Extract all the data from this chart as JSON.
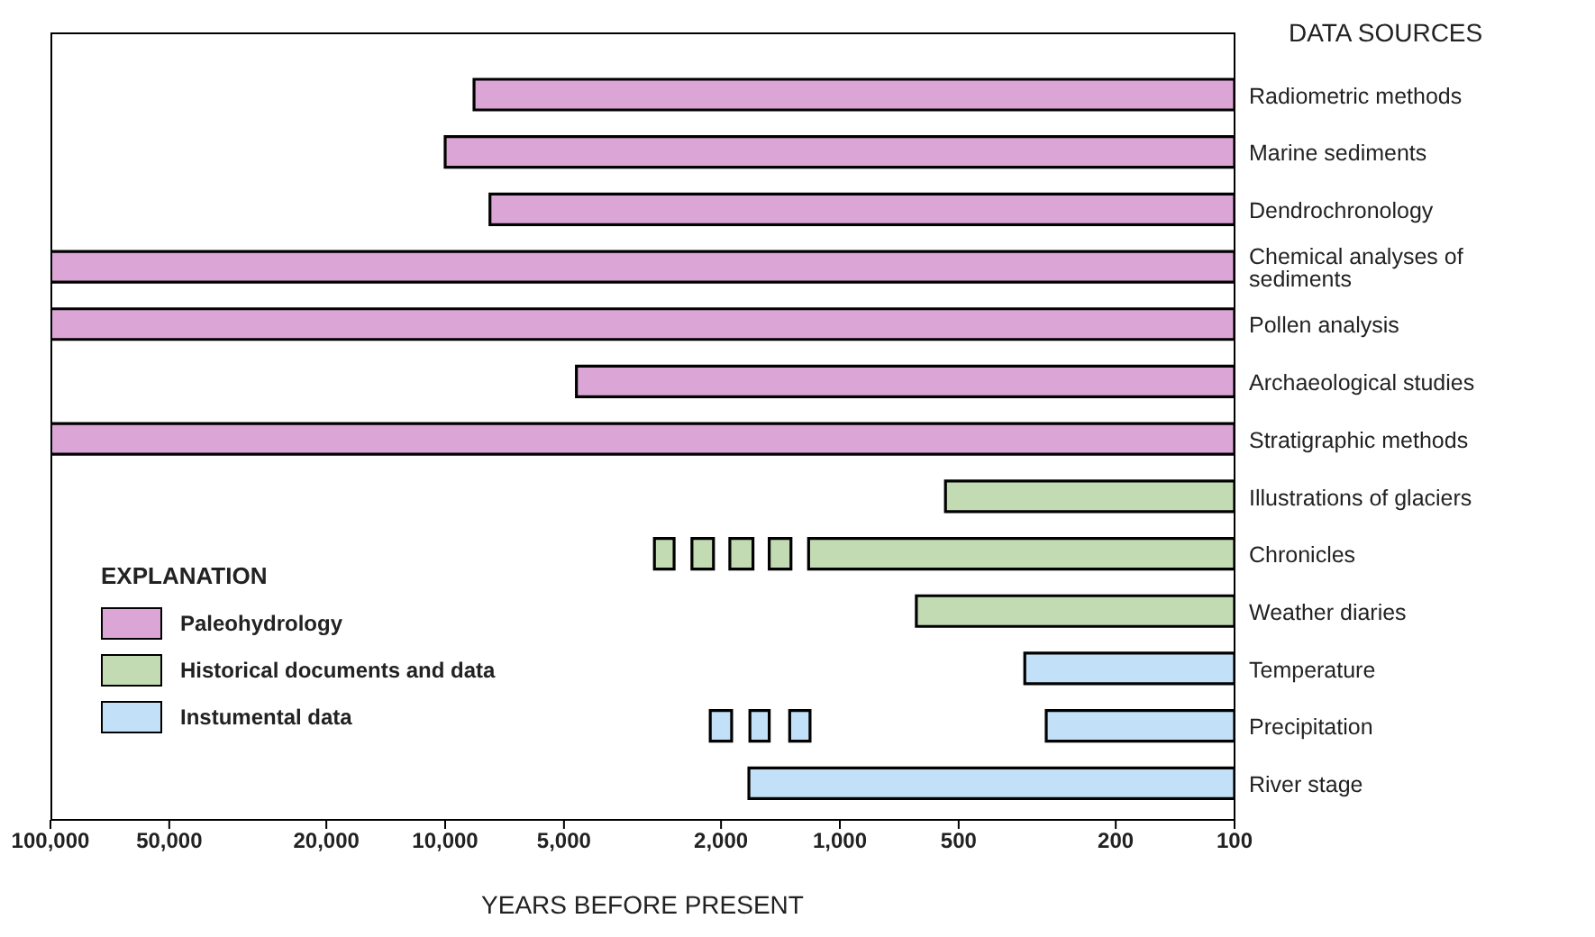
{
  "chart_data": {
    "type": "bar",
    "orientation": "horizontal",
    "log": "x",
    "xlabel": "YEARS BEFORE PRESENT",
    "ylabel": "DATA SOURCES",
    "legend_title": "EXPLANATION",
    "legend": "bottom left",
    "categories": [
      "Radiometric methods",
      "Marine sediments",
      "Dendrochronology",
      "Chemical analyses of sediments",
      "Pollen analysis",
      "Archaeological studies",
      "Stratigraphic methods",
      "Illustrations of glaciers",
      "Chronicles",
      "Weather diaries",
      "Temperature",
      "Precipitation",
      "River stage"
    ],
    "xlim": [
      100000,
      100
    ],
    "xticks": [
      {
        "value": 100000,
        "label": "100,000"
      },
      {
        "value": 50000,
        "label": "50,000"
      },
      {
        "value": 20000,
        "label": "20,000"
      },
      {
        "value": 10000,
        "label": "10,000"
      },
      {
        "value": 5000,
        "label": "5,000"
      },
      {
        "value": 2000,
        "label": "2,000"
      },
      {
        "value": 1000,
        "label": "1,000"
      },
      500,
      200,
      100
    ],
    "series": [
      {
        "name": "Paleohydrology",
        "color": "#dba6d6",
        "base": [
          100,
          100,
          100,
          100,
          100,
          100,
          100,
          null,
          null,
          null,
          null,
          null,
          null
        ],
        "values": [
          8350,
          9900,
          7600,
          99900,
          99900,
          4550,
          99900,
          null,
          null,
          null,
          null,
          null,
          null
        ]
      },
      {
        "name": "Historical documents and data",
        "color": "#c3dbb2",
        "base": [
          null,
          null,
          null,
          null,
          null,
          null,
          null,
          100,
          100,
          100,
          null,
          null,
          null
        ],
        "values": [
          null,
          null,
          null,
          null,
          null,
          null,
          null,
          440,
          1100,
          540,
          null,
          null,
          null
        ]
      },
      {
        "name": "Instumental data",
        "color": "#c2e0f7",
        "base": [
          null,
          null,
          null,
          null,
          null,
          null,
          null,
          null,
          null,
          null,
          100,
          100,
          100
        ],
        "values": [
          null,
          null,
          null,
          null,
          null,
          null,
          null,
          null,
          null,
          null,
          240,
          200,
          1600
        ]
      },
      {
        "colors": [
          null,
          null,
          null,
          null,
          null,
          null,
          null,
          null,
          "#c3dbb2",
          null,
          null,
          "#c2e0f7",
          null
        ],
        "base": [
          null,
          null,
          null,
          null,
          null,
          null,
          null,
          null,
          2630,
          null,
          null,
          1880,
          null
        ],
        "values": [
          null,
          null,
          null,
          null,
          null,
          null,
          null,
          null,
          320,
          null,
          null,
          250,
          null
        ]
      },
      {
        "colors": [
          null,
          null,
          null,
          null,
          null,
          null,
          null,
          null,
          "#c3dbb2",
          null,
          null,
          "#c2e0f7",
          null
        ],
        "base": [
          null,
          null,
          null,
          null,
          null,
          null,
          null,
          null,
          2090,
          null,
          null,
          1510,
          null
        ],
        "values": [
          null,
          null,
          null,
          null,
          null,
          null,
          null,
          null,
          280,
          null,
          null,
          180,
          null
        ]
      },
      {
        "colors": [
          null,
          null,
          null,
          null,
          null,
          null,
          null,
          null,
          "#c3dbb2",
          null,
          null,
          "#c2e0f7",
          null
        ],
        "base": [
          null,
          null,
          null,
          null,
          null,
          null,
          null,
          null,
          1660,
          null,
          null,
          1190,
          null
        ],
        "values": [
          null,
          null,
          null,
          null,
          null,
          null,
          null,
          null,
          240,
          null,
          null,
          150,
          null
        ]
      },
      {
        "colors": [
          null,
          null,
          null,
          null,
          null,
          null,
          null,
          null,
          "#c3dbb2",
          null,
          null,
          null,
          null
        ],
        "base": [
          null,
          null,
          null,
          null,
          null,
          null,
          null,
          null,
          1330,
          null,
          null,
          null,
          null
        ],
        "values": [
          null,
          null,
          null,
          null,
          null,
          null,
          null,
          null,
          180,
          null,
          null,
          null,
          null
        ]
      }
    ]
  }
}
